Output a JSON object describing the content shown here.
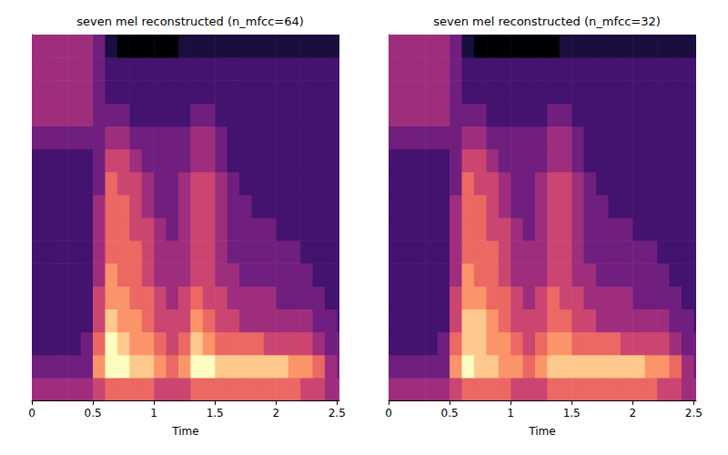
{
  "chart_data": [
    {
      "type": "heatmap",
      "title": "seven mel reconstructed (n_mfcc=64)",
      "xlabel": "Time",
      "xlim": [
        0,
        2.52
      ],
      "xticks": [
        0,
        0.5,
        1,
        1.5,
        2,
        2.5
      ],
      "ylim": [
        0,
        16
      ],
      "tick_labels": "x",
      "grid": false,
      "zlim": [
        0,
        9
      ],
      "x_edges": [
        0,
        0.1,
        0.2,
        0.3,
        0.4,
        0.5,
        0.6,
        0.7,
        0.8,
        0.9,
        1.0,
        1.1,
        1.2,
        1.3,
        1.4,
        1.5,
        1.6,
        1.7,
        1.8,
        1.9,
        2.0,
        2.1,
        2.2,
        2.3,
        2.4,
        2.5,
        2.52
      ],
      "y_edges": [
        0,
        1,
        2,
        3,
        4,
        5,
        6,
        7,
        8,
        9,
        10,
        11,
        12,
        13,
        14,
        15,
        16
      ],
      "cells": [
        [
          4,
          4,
          4,
          4,
          4,
          5,
          6,
          6,
          6,
          6,
          5,
          5,
          5,
          6,
          6,
          6,
          6,
          6,
          6,
          6,
          6,
          6,
          5,
          5,
          4,
          4
        ],
        [
          3,
          3,
          3,
          3,
          3,
          7,
          9,
          9,
          8,
          8,
          7,
          6,
          7,
          9,
          9,
          8,
          8,
          8,
          8,
          8,
          8,
          7,
          7,
          6,
          4,
          3
        ],
        [
          2,
          2,
          2,
          2,
          3,
          6,
          9,
          8,
          7,
          7,
          6,
          5,
          6,
          8,
          7,
          6,
          6,
          6,
          6,
          5,
          5,
          5,
          5,
          4,
          3,
          3
        ],
        [
          2,
          2,
          2,
          2,
          2,
          5,
          8,
          7,
          7,
          6,
          5,
          5,
          5,
          7,
          6,
          5,
          5,
          4,
          4,
          4,
          4,
          4,
          4,
          3,
          3,
          2
        ],
        [
          2,
          2,
          2,
          2,
          2,
          5,
          7,
          7,
          6,
          6,
          5,
          4,
          5,
          6,
          5,
          5,
          4,
          4,
          4,
          4,
          3,
          3,
          3,
          3,
          2,
          2
        ],
        [
          2,
          2,
          2,
          2,
          2,
          4,
          7,
          6,
          6,
          5,
          4,
          4,
          4,
          5,
          5,
          4,
          4,
          3,
          3,
          3,
          3,
          3,
          3,
          2,
          2,
          2
        ],
        [
          2,
          2,
          2,
          2,
          2,
          4,
          6,
          6,
          6,
          5,
          4,
          4,
          4,
          5,
          5,
          4,
          3,
          3,
          3,
          3,
          3,
          3,
          2,
          2,
          2,
          2
        ],
        [
          2,
          2,
          2,
          2,
          2,
          4,
          6,
          6,
          5,
          5,
          4,
          3,
          4,
          5,
          5,
          4,
          3,
          3,
          3,
          3,
          2,
          2,
          2,
          2,
          2,
          2
        ],
        [
          2,
          2,
          2,
          2,
          2,
          4,
          6,
          6,
          5,
          4,
          3,
          3,
          4,
          5,
          5,
          4,
          3,
          3,
          2,
          2,
          2,
          2,
          2,
          2,
          2,
          2
        ],
        [
          2,
          2,
          2,
          2,
          2,
          3,
          6,
          5,
          5,
          4,
          3,
          3,
          4,
          5,
          5,
          4,
          3,
          2,
          2,
          2,
          2,
          2,
          2,
          2,
          2,
          2
        ],
        [
          2,
          2,
          2,
          2,
          2,
          3,
          5,
          5,
          4,
          3,
          3,
          3,
          3,
          4,
          4,
          3,
          2,
          2,
          2,
          2,
          2,
          2,
          2,
          2,
          2,
          2
        ],
        [
          3,
          3,
          3,
          3,
          3,
          3,
          4,
          4,
          3,
          3,
          3,
          3,
          3,
          4,
          4,
          3,
          2,
          2,
          2,
          2,
          2,
          2,
          2,
          2,
          2,
          2
        ],
        [
          4,
          4,
          4,
          4,
          4,
          3,
          3,
          3,
          2,
          2,
          2,
          2,
          2,
          3,
          3,
          2,
          2,
          2,
          2,
          2,
          2,
          2,
          2,
          2,
          2,
          2
        ],
        [
          4,
          4,
          4,
          4,
          4,
          3,
          2,
          2,
          2,
          2,
          2,
          2,
          2,
          2,
          2,
          2,
          2,
          2,
          2,
          2,
          2,
          2,
          2,
          2,
          2,
          2
        ],
        [
          4,
          4,
          4,
          4,
          4,
          3,
          2,
          2,
          2,
          2,
          2,
          2,
          2,
          2,
          2,
          2,
          2,
          2,
          2,
          2,
          2,
          2,
          2,
          2,
          2,
          2
        ],
        [
          4,
          4,
          4,
          4,
          4,
          3,
          1,
          0,
          0,
          0,
          0,
          0,
          1,
          1,
          1,
          1,
          1,
          1,
          1,
          1,
          1,
          1,
          1,
          1,
          1,
          1
        ]
      ]
    },
    {
      "type": "heatmap",
      "title": "seven mel reconstructed (n_mfcc=32)",
      "xlabel": "Time",
      "xlim": [
        0,
        2.52
      ],
      "xticks": [
        0,
        0.5,
        1,
        1.5,
        2,
        2.5
      ],
      "ylim": [
        0,
        16
      ],
      "tick_labels": "x",
      "grid": false,
      "zlim": [
        0,
        9
      ],
      "x_edges": [
        0,
        0.1,
        0.2,
        0.3,
        0.4,
        0.5,
        0.6,
        0.7,
        0.8,
        0.9,
        1.0,
        1.1,
        1.2,
        1.3,
        1.4,
        1.5,
        1.6,
        1.7,
        1.8,
        1.9,
        2.0,
        2.1,
        2.2,
        2.3,
        2.4,
        2.5,
        2.52
      ],
      "y_edges": [
        0,
        1,
        2,
        3,
        4,
        5,
        6,
        7,
        8,
        9,
        10,
        11,
        12,
        13,
        14,
        15,
        16
      ],
      "cells": [
        [
          4,
          4,
          4,
          4,
          4,
          5,
          6,
          6,
          6,
          6,
          5,
          5,
          5,
          6,
          6,
          6,
          6,
          6,
          6,
          6,
          6,
          6,
          5,
          5,
          4,
          4
        ],
        [
          3,
          3,
          3,
          3,
          3,
          7,
          9,
          8,
          8,
          7,
          7,
          6,
          7,
          8,
          8,
          8,
          8,
          8,
          8,
          8,
          8,
          7,
          7,
          6,
          4,
          3
        ],
        [
          2,
          2,
          2,
          2,
          3,
          6,
          8,
          8,
          7,
          7,
          6,
          5,
          6,
          7,
          7,
          6,
          6,
          6,
          6,
          5,
          5,
          5,
          5,
          4,
          3,
          3
        ],
        [
          2,
          2,
          2,
          2,
          2,
          5,
          8,
          8,
          7,
          6,
          5,
          5,
          5,
          6,
          6,
          5,
          5,
          4,
          4,
          4,
          4,
          4,
          4,
          3,
          3,
          2
        ],
        [
          2,
          2,
          2,
          2,
          2,
          5,
          7,
          7,
          6,
          6,
          5,
          4,
          5,
          6,
          5,
          5,
          4,
          4,
          4,
          4,
          3,
          3,
          3,
          3,
          2,
          2
        ],
        [
          2,
          2,
          2,
          2,
          2,
          4,
          7,
          6,
          6,
          5,
          4,
          4,
          4,
          5,
          5,
          4,
          4,
          3,
          3,
          3,
          3,
          3,
          3,
          2,
          2,
          2
        ],
        [
          2,
          2,
          2,
          2,
          2,
          4,
          6,
          6,
          6,
          5,
          4,
          4,
          4,
          5,
          5,
          4,
          3,
          3,
          3,
          3,
          3,
          3,
          2,
          2,
          2,
          2
        ],
        [
          2,
          2,
          2,
          2,
          2,
          4,
          6,
          6,
          5,
          5,
          4,
          3,
          4,
          5,
          5,
          4,
          3,
          3,
          3,
          3,
          2,
          2,
          2,
          2,
          2,
          2
        ],
        [
          2,
          2,
          2,
          2,
          2,
          4,
          6,
          6,
          5,
          4,
          3,
          3,
          4,
          5,
          5,
          4,
          3,
          3,
          2,
          2,
          2,
          2,
          2,
          2,
          2,
          2
        ],
        [
          2,
          2,
          2,
          2,
          2,
          3,
          6,
          5,
          5,
          4,
          3,
          3,
          4,
          5,
          5,
          4,
          3,
          2,
          2,
          2,
          2,
          2,
          2,
          2,
          2,
          2
        ],
        [
          2,
          2,
          2,
          2,
          2,
          3,
          5,
          5,
          4,
          3,
          3,
          3,
          3,
          4,
          4,
          3,
          2,
          2,
          2,
          2,
          2,
          2,
          2,
          2,
          2,
          2
        ],
        [
          3,
          3,
          3,
          3,
          3,
          3,
          4,
          4,
          3,
          3,
          3,
          3,
          3,
          4,
          4,
          3,
          2,
          2,
          2,
          2,
          2,
          2,
          2,
          2,
          2,
          2
        ],
        [
          4,
          4,
          4,
          4,
          4,
          3,
          3,
          3,
          2,
          2,
          2,
          2,
          2,
          3,
          3,
          2,
          2,
          2,
          2,
          2,
          2,
          2,
          2,
          2,
          2,
          2
        ],
        [
          4,
          4,
          4,
          4,
          4,
          3,
          2,
          2,
          2,
          2,
          2,
          2,
          2,
          2,
          2,
          2,
          2,
          2,
          2,
          2,
          2,
          2,
          2,
          2,
          2,
          2
        ],
        [
          4,
          4,
          4,
          4,
          4,
          3,
          2,
          2,
          2,
          2,
          2,
          2,
          2,
          2,
          2,
          2,
          2,
          2,
          2,
          2,
          2,
          2,
          2,
          2,
          2,
          2
        ],
        [
          4,
          4,
          4,
          4,
          4,
          3,
          1,
          0,
          0,
          0,
          0,
          0,
          0,
          0,
          1,
          1,
          1,
          1,
          1,
          1,
          1,
          1,
          1,
          1,
          1,
          1
        ]
      ]
    }
  ]
}
